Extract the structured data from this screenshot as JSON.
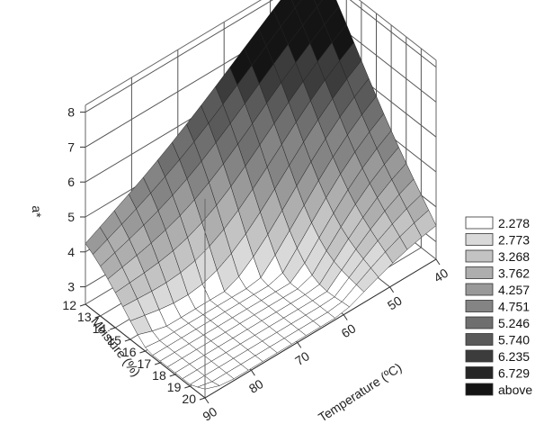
{
  "chart_data": {
    "type": "surface3d",
    "zlabel": "a*",
    "xlabel": "Temperature (ºC)",
    "ylabel": "Moisture (%)",
    "z_ticks": [
      "3",
      "4",
      "5",
      "6",
      "7",
      "8"
    ],
    "x_ticks": [
      "40",
      "50",
      "60",
      "70",
      "80",
      "90"
    ],
    "y_ticks": [
      "12",
      "13",
      "14",
      "15",
      "16",
      "17",
      "18",
      "19",
      "20"
    ],
    "xlim": [
      40,
      90
    ],
    "ylim": [
      12,
      20
    ],
    "zlim": [
      2.5,
      8.2
    ],
    "surface_corners": [
      {
        "temperature": 40,
        "moisture": 12,
        "a": 8.2
      },
      {
        "temperature": 90,
        "moisture": 12,
        "a": 4.0
      },
      {
        "temperature": 40,
        "moisture": 20,
        "a": 3.2
      },
      {
        "temperature": 90,
        "moisture": 20,
        "a": 3.0
      }
    ],
    "surface_minimum": {
      "temperature": 72,
      "moisture": 17,
      "a": 2.3
    },
    "grid": true,
    "legend_position": "right",
    "legend": [
      {
        "label": "2.278",
        "color": "#ffffff"
      },
      {
        "label": "2.773",
        "color": "#d9d9d9"
      },
      {
        "label": "3.268",
        "color": "#c3c3c3"
      },
      {
        "label": "3.762",
        "color": "#aeaeae"
      },
      {
        "label": "4.257",
        "color": "#999999"
      },
      {
        "label": "4.751",
        "color": "#848484"
      },
      {
        "label": "5.246",
        "color": "#6f6f6f"
      },
      {
        "label": "5.740",
        "color": "#5a5a5a"
      },
      {
        "label": "6.235",
        "color": "#3c3c3c"
      },
      {
        "label": "6.729",
        "color": "#262626"
      },
      {
        "label": "above",
        "color": "#141414"
      }
    ]
  }
}
